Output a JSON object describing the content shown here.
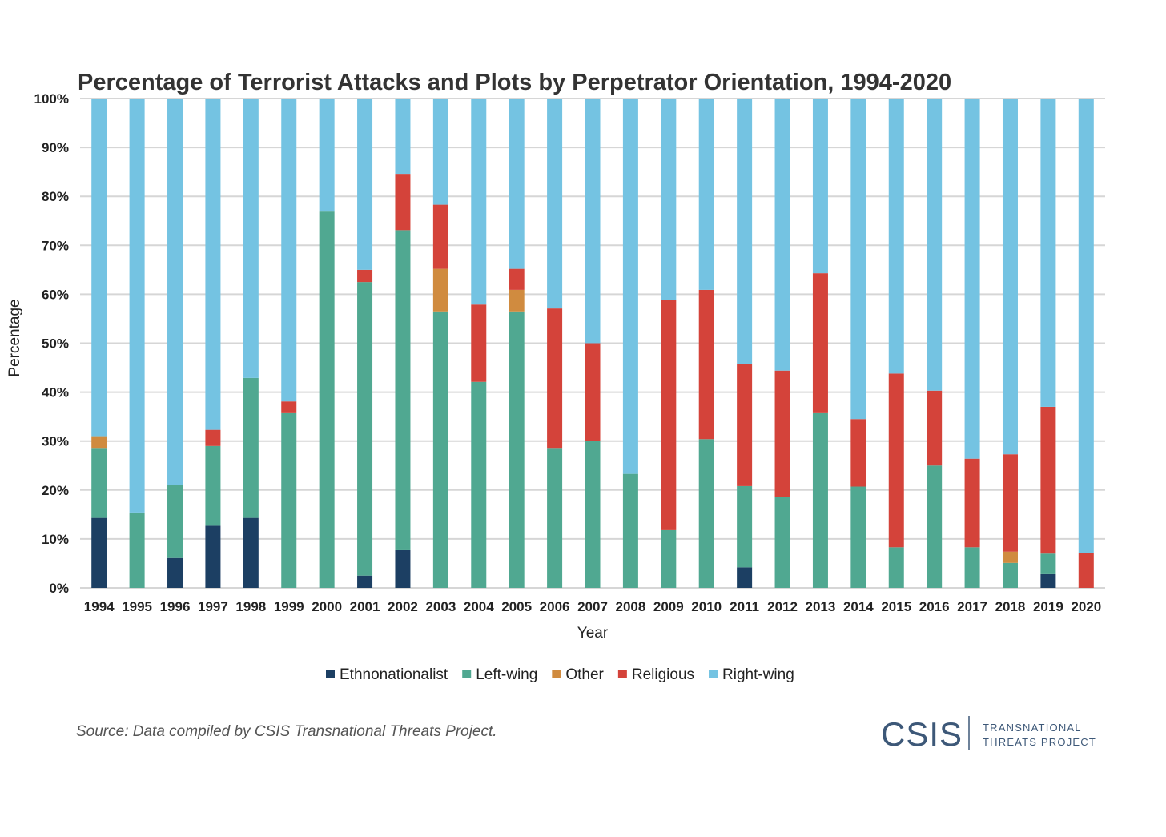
{
  "chart_data": {
    "type": "bar",
    "stacked": true,
    "title": "Percentage of Terrorist Attacks and Plots by Perpetrator Orientation, 1994-2020",
    "xlabel": "Year",
    "ylabel": "Percentage",
    "ylim": [
      0,
      100
    ],
    "yticks": [
      "0%",
      "10%",
      "20%",
      "30%",
      "40%",
      "50%",
      "60%",
      "70%",
      "80%",
      "90%",
      "100%"
    ],
    "grid": true,
    "legend_position": "bottom",
    "categories": [
      "1994",
      "1995",
      "1996",
      "1997",
      "1998",
      "1999",
      "2000",
      "2001",
      "2002",
      "2003",
      "2004",
      "2005",
      "2006",
      "2007",
      "2008",
      "2009",
      "2010",
      "2011",
      "2012",
      "2013",
      "2014",
      "2015",
      "2016",
      "2017",
      "2018",
      "2019",
      "2020"
    ],
    "series": [
      {
        "name": "Ethnonationalist",
        "color": "#1c3f63",
        "values": [
          14.3,
          0,
          6.1,
          12.7,
          14.3,
          0,
          0,
          2.5,
          7.7,
          0,
          0,
          0,
          0,
          0,
          0,
          0,
          0,
          4.2,
          0,
          0,
          0,
          0,
          0,
          0,
          0,
          2.8,
          0
        ]
      },
      {
        "name": "Left-wing",
        "color": "#50a891",
        "values": [
          14.3,
          15.4,
          14.9,
          16.3,
          28.6,
          35.7,
          76.9,
          60.0,
          65.4,
          56.5,
          42.1,
          56.5,
          28.6,
          30.0,
          23.3,
          11.8,
          30.4,
          16.6,
          18.5,
          35.7,
          20.7,
          8.3,
          25.0,
          8.3,
          5.1,
          4.2,
          0
        ]
      },
      {
        "name": "Other",
        "color": "#d08b3f",
        "values": [
          2.4,
          0,
          0,
          0,
          0,
          0,
          0,
          0,
          0,
          8.7,
          0,
          4.4,
          0,
          0,
          0,
          0,
          0,
          0,
          0,
          0,
          0,
          0,
          0,
          0,
          2.3,
          0,
          0
        ]
      },
      {
        "name": "Religious",
        "color": "#d4433a",
        "values": [
          0,
          0,
          0,
          3.3,
          0,
          2.4,
          0,
          2.5,
          11.5,
          13.1,
          15.8,
          4.3,
          28.5,
          20.0,
          0,
          47.0,
          30.5,
          25.0,
          25.9,
          28.6,
          13.8,
          35.5,
          15.3,
          18.1,
          19.9,
          30.0,
          7.1
        ]
      },
      {
        "name": "Right-wing",
        "color": "#74c3e2",
        "values": [
          69.0,
          84.6,
          79.0,
          67.7,
          57.1,
          61.9,
          23.1,
          35.0,
          15.4,
          21.7,
          42.1,
          34.8,
          42.9,
          50.0,
          76.7,
          41.2,
          39.1,
          54.2,
          55.6,
          35.7,
          65.5,
          56.2,
          59.7,
          73.6,
          72.7,
          63.0,
          92.9
        ]
      }
    ]
  },
  "footer": {
    "source": "Source: Data compiled by CSIS Transnational Threats Project.",
    "logo_text": "CSIS",
    "logo_sub_line1": "TRANSNATIONAL",
    "logo_sub_line2": "THREATS PROJECT"
  }
}
